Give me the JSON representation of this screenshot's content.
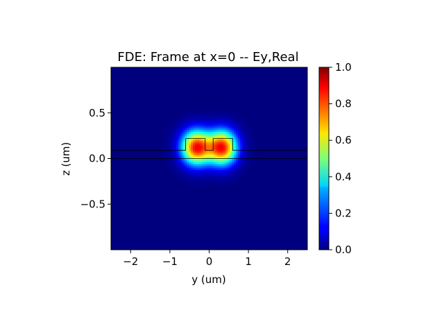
{
  "chart_data": {
    "type": "heatmap",
    "title": "FDE: Frame at x=0 -- Ey,Real",
    "xlabel": "y (um)",
    "ylabel": "z (um)",
    "xlim": [
      -2.5,
      2.5
    ],
    "ylim": [
      -1.0,
      1.0
    ],
    "xticks": [
      -2,
      -1,
      0,
      1,
      2
    ],
    "xtick_labels": [
      "−2",
      "−1",
      "0",
      "1",
      "2"
    ],
    "yticks": [
      -0.5,
      0.0,
      0.5
    ],
    "ytick_labels": [
      "−0.5",
      "0.0",
      "0.5"
    ],
    "colormap": "jet",
    "clim": [
      0.0,
      1.0
    ],
    "colorbar_ticks": [
      0.0,
      0.2,
      0.4,
      0.6,
      0.8,
      1.0
    ],
    "colorbar_tick_labels": [
      "0.0",
      "0.2",
      "0.4",
      "0.6",
      "0.8",
      "1.0"
    ],
    "field_lobes": [
      {
        "y": -0.33,
        "z": 0.12,
        "peak": 0.86
      },
      {
        "y": 0.33,
        "z": 0.12,
        "peak": 0.86
      }
    ],
    "structure_outline": [
      [
        -2.5,
        0.09
      ],
      [
        -0.6,
        0.09
      ],
      [
        -0.6,
        0.22
      ],
      [
        -0.1,
        0.22
      ],
      [
        -0.1,
        0.09
      ],
      [
        0.1,
        0.09
      ],
      [
        0.1,
        0.22
      ],
      [
        0.6,
        0.22
      ],
      [
        0.6,
        0.09
      ],
      [
        2.5,
        0.09
      ]
    ],
    "substrate_line_z": 0.0,
    "grid": false
  }
}
